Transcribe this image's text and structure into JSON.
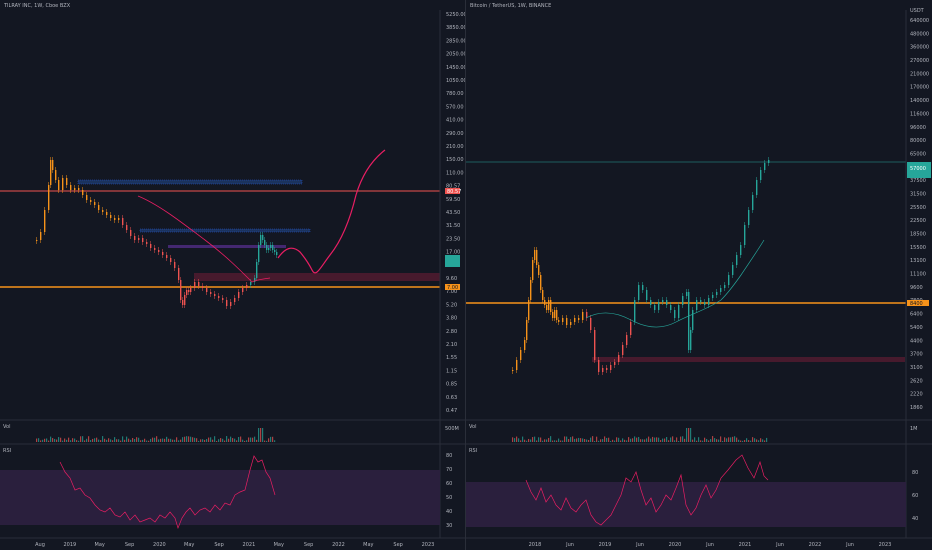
{
  "left": {
    "title": "TILRAY INC, 1W, Cboe BZX",
    "price_axis": [
      "5250.00",
      "3850.00",
      "2850.00",
      "2050.00",
      "1450.00",
      "1050.00",
      "780.00",
      "570.00",
      "410.00",
      "290.00",
      "210.00",
      "150.00",
      "110.00",
      "80.57",
      "59.50",
      "43.50",
      "31.50",
      "23.50",
      "17.00",
      "13.00",
      "9.60",
      "7.00",
      "5.20",
      "3.80",
      "2.80",
      "2.10",
      "1.55",
      "1.15",
      "0.85",
      "0.63",
      "0.47"
    ],
    "last_price_tag": "80.57",
    "level_tag": "7.00",
    "time_axis": [
      "Aug",
      "2019",
      "May",
      "Sep",
      "2020",
      "May",
      "Sep",
      "2021",
      "May",
      "Sep",
      "2022",
      "May",
      "Sep",
      "2023"
    ],
    "vol_label": "Vol",
    "rsi_label": "RSI",
    "rsi_axis": [
      "80",
      "70",
      "60",
      "50",
      "40",
      "30"
    ],
    "colors": {
      "up": "#26a69a",
      "down": "#ef5350",
      "orange": "#f7931a",
      "pink": "#e91e63",
      "zone": "#673ab7"
    }
  },
  "right": {
    "title": "Bitcoin / TetherUS, 1W, BINANCE",
    "usdt_label": "USDT",
    "price_axis": [
      "640000",
      "480000",
      "360000",
      "270000",
      "210000",
      "170000",
      "140000",
      "116000",
      "96000",
      "80000",
      "65000",
      "49500",
      "37500",
      "31500",
      "25500",
      "22500",
      "18500",
      "15500",
      "13100",
      "11100",
      "9600",
      "7800",
      "6400",
      "5400",
      "4400",
      "3700",
      "3100",
      "2620",
      "2220",
      "1860"
    ],
    "last_price_tag": "57000",
    "level_tag": "8400",
    "time_axis": [
      "2018",
      "Jun",
      "2019",
      "Jun",
      "2020",
      "Jun",
      "2021",
      "Jun",
      "2022",
      "Jun",
      "2023"
    ],
    "vol_label": "Vol",
    "vol_axis": "1M",
    "rsi_label": "RSI",
    "rsi_axis": [
      "80",
      "60",
      "40"
    ],
    "left_vol_axis": "500M"
  }
}
